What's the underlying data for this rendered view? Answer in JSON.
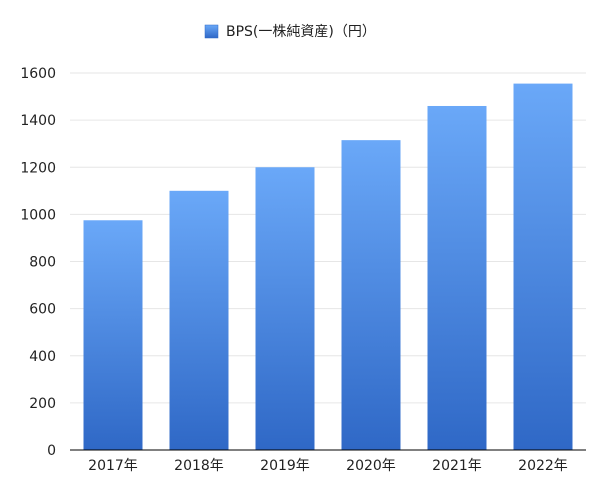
{
  "chart_data": {
    "type": "bar",
    "legend": {
      "position": "top-center",
      "entries": [
        "BPS(一株純資産)（円）"
      ]
    },
    "categories": [
      "2017年",
      "2018年",
      "2019年",
      "2020年",
      "2021年",
      "2022年"
    ],
    "series": [
      {
        "name": "BPS(一株純資産)（円）",
        "values": [
          975,
          1100,
          1200,
          1315,
          1460,
          1555
        ]
      }
    ],
    "ylim": [
      0,
      1600
    ],
    "yticks": [
      0,
      200,
      400,
      600,
      800,
      1000,
      1200,
      1400,
      1600
    ],
    "grid": true,
    "colors": {
      "bar_top": "#6aa8f8",
      "bar_bottom": "#2f68c6",
      "grid": "#e6e6e6",
      "axis": "#000000"
    }
  }
}
